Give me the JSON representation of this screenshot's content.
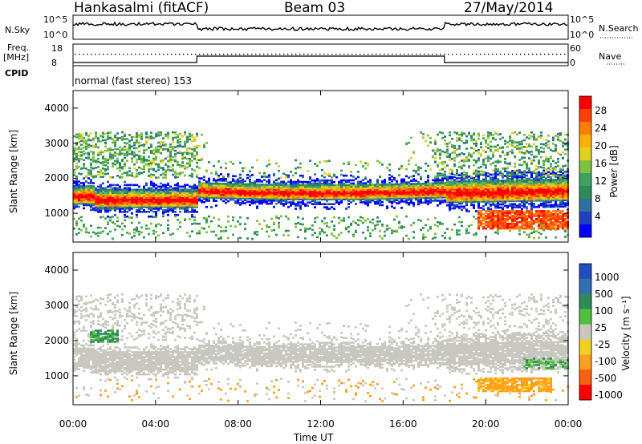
{
  "header": {
    "station": "Hankasalmi (fitACF)",
    "beam": "Beam 03",
    "date": "27/May/2014"
  },
  "strips": {
    "nsky": {
      "label": "N.Sky",
      "left_ticks": [
        "10^5",
        "10^0"
      ],
      "right_ticks": [
        "10^5",
        "10^0"
      ],
      "right_label": "N.Search"
    },
    "freq": {
      "label_line1": "Freq.",
      "label_line2": "[MHz]",
      "left_ticks": [
        "18",
        "8"
      ],
      "right_ticks": [
        "60",
        "0"
      ],
      "right_label": "Nave"
    },
    "cpid": {
      "label": "CPID",
      "text": "normal (fast stereo) 153"
    }
  },
  "chart_data": [
    {
      "panel": "power",
      "type": "heatmap",
      "ylabel": "Slant Range [km]",
      "xlabel": "Time UT",
      "x_range_hours": [
        0,
        24
      ],
      "ylim": [
        180,
        4500
      ],
      "yticks": [
        1000,
        2000,
        3000,
        4000
      ],
      "xticks": [
        "00:00",
        "04:00",
        "08:00",
        "12:00",
        "16:00",
        "20:00",
        "00:00"
      ],
      "colorbar": {
        "label": "Power [dB]",
        "ticks": [
          "28",
          "24",
          "20",
          "16",
          "12",
          "8",
          "4"
        ],
        "colors": [
          "#ff0000",
          "#ff4000",
          "#ff8000",
          "#ffb000",
          "#e0d020",
          "#80c040",
          "#40a060",
          "#2e8b57",
          "#3070a0",
          "#2040c0",
          "#0000ff"
        ]
      },
      "bands": [
        {
          "t_start": 0,
          "t_end": 6,
          "range_km": [
            1150,
            1650
          ],
          "power_db": 28
        },
        {
          "t_start": 6,
          "t_end": 18,
          "range_km": [
            1450,
            1900
          ],
          "power_db": 22
        },
        {
          "t_start": 18,
          "t_end": 24,
          "range_km": [
            1300,
            1900
          ],
          "power_db": 24
        },
        {
          "t_start": 19.5,
          "t_end": 24,
          "range_km": [
            600,
            1000
          ],
          "power_db": 28
        }
      ]
    },
    {
      "panel": "velocity",
      "type": "heatmap",
      "ylabel": "Slant Range [km]",
      "xlabel": "Time UT",
      "x_range_hours": [
        0,
        24
      ],
      "ylim": [
        180,
        4500
      ],
      "yticks": [
        1000,
        2000,
        3000,
        4000
      ],
      "xticks": [
        "00:00",
        "04:00",
        "08:00",
        "12:00",
        "16:00",
        "20:00",
        "00:00"
      ],
      "colorbar": {
        "label": "Velocity [m s⁻¹]",
        "ticks": [
          "1000",
          "500",
          "100",
          "25",
          "-25",
          "-100",
          "-500",
          "-1000"
        ],
        "colors": [
          "#2050c0",
          "#3070b0",
          "#2e8b57",
          "#50c040",
          "#c8c8c0",
          "#f0d020",
          "#ffa020",
          "#ff6010",
          "#ff0000"
        ]
      },
      "bands": [
        {
          "t_start": 0,
          "t_end": 24,
          "range_km": [
            1200,
            1900
          ],
          "velocity": "ground scatter (-25 to 25)"
        },
        {
          "t_start": 0.8,
          "t_end": 2.2,
          "range_km": [
            1950,
            2300
          ],
          "velocity": 100
        },
        {
          "t_start": 19.6,
          "t_end": 23.2,
          "range_km": [
            550,
            950
          ],
          "velocity": -500
        },
        {
          "t_start": 21.8,
          "t_end": 24,
          "range_km": [
            1200,
            1500
          ],
          "velocity": 100
        }
      ]
    }
  ]
}
